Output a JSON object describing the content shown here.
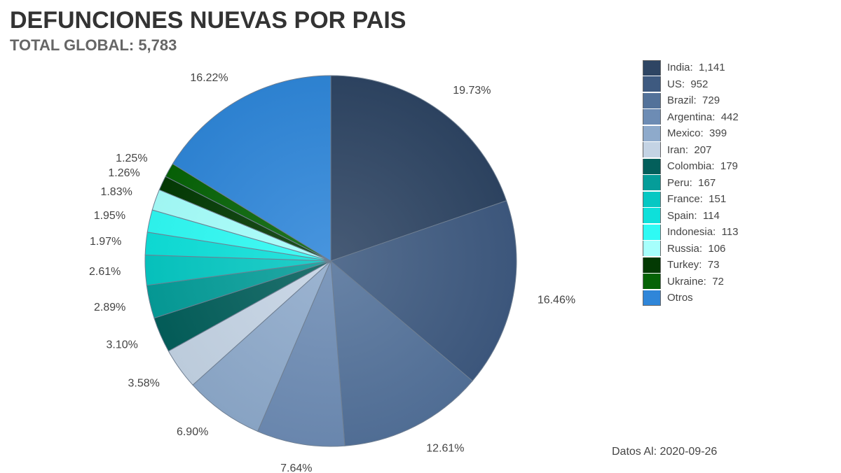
{
  "header": {
    "title": "DEFUNCIONES NUEVAS POR PAIS",
    "subtitle": "TOTAL GLOBAL: 5,783"
  },
  "footer": {
    "note": "Datos Al: 2020-09-26"
  },
  "chart_data": {
    "type": "pie",
    "title": "DEFUNCIONES NUEVAS POR PAIS",
    "subtitle": "TOTAL GLOBAL: 5,783",
    "legend_position": "right",
    "slices": [
      {
        "name": "India",
        "value": 1141,
        "value_label": "1,141",
        "percent_label": "19.73%",
        "color": "#2e4563"
      },
      {
        "name": "US",
        "value": 952,
        "value_label": "952",
        "percent_label": "16.46%",
        "color": "#3e5a80"
      },
      {
        "name": "Brazil",
        "value": 729,
        "value_label": "729",
        "percent_label": "12.61%",
        "color": "#53729a"
      },
      {
        "name": "Argentina",
        "value": 442,
        "value_label": "442",
        "percent_label": "7.64%",
        "color": "#6d8cb4"
      },
      {
        "name": "Mexico",
        "value": 399,
        "value_label": "399",
        "percent_label": "6.90%",
        "color": "#8eaacb"
      },
      {
        "name": "Iran",
        "value": 207,
        "value_label": "207",
        "percent_label": "3.58%",
        "color": "#c4d3e4"
      },
      {
        "name": "Colombia",
        "value": 179,
        "value_label": "179",
        "percent_label": "3.10%",
        "color": "#035f5b"
      },
      {
        "name": "Peru",
        "value": 167,
        "value_label": "167",
        "percent_label": "2.89%",
        "color": "#059d99"
      },
      {
        "name": "France",
        "value": 151,
        "value_label": "151",
        "percent_label": "2.61%",
        "color": "#06c8c3"
      },
      {
        "name": "Spain",
        "value": 114,
        "value_label": "114",
        "percent_label": "1.97%",
        "color": "#0ee0da"
      },
      {
        "name": "Indonesia",
        "value": 113,
        "value_label": "113",
        "percent_label": "1.95%",
        "color": "#2ffaf4"
      },
      {
        "name": "Russia",
        "value": 106,
        "value_label": "106",
        "percent_label": "1.83%",
        "color": "#a6fffc"
      },
      {
        "name": "Turkey",
        "value": 73,
        "value_label": "73",
        "percent_label": "1.26%",
        "color": "#033a03"
      },
      {
        "name": "Ukraine",
        "value": 72,
        "value_label": "72",
        "percent_label": "1.25%",
        "color": "#066306"
      },
      {
        "name": "Otros",
        "value": 938,
        "value_label": "",
        "percent_label": "16.22%",
        "color": "#2f86d9"
      }
    ]
  }
}
